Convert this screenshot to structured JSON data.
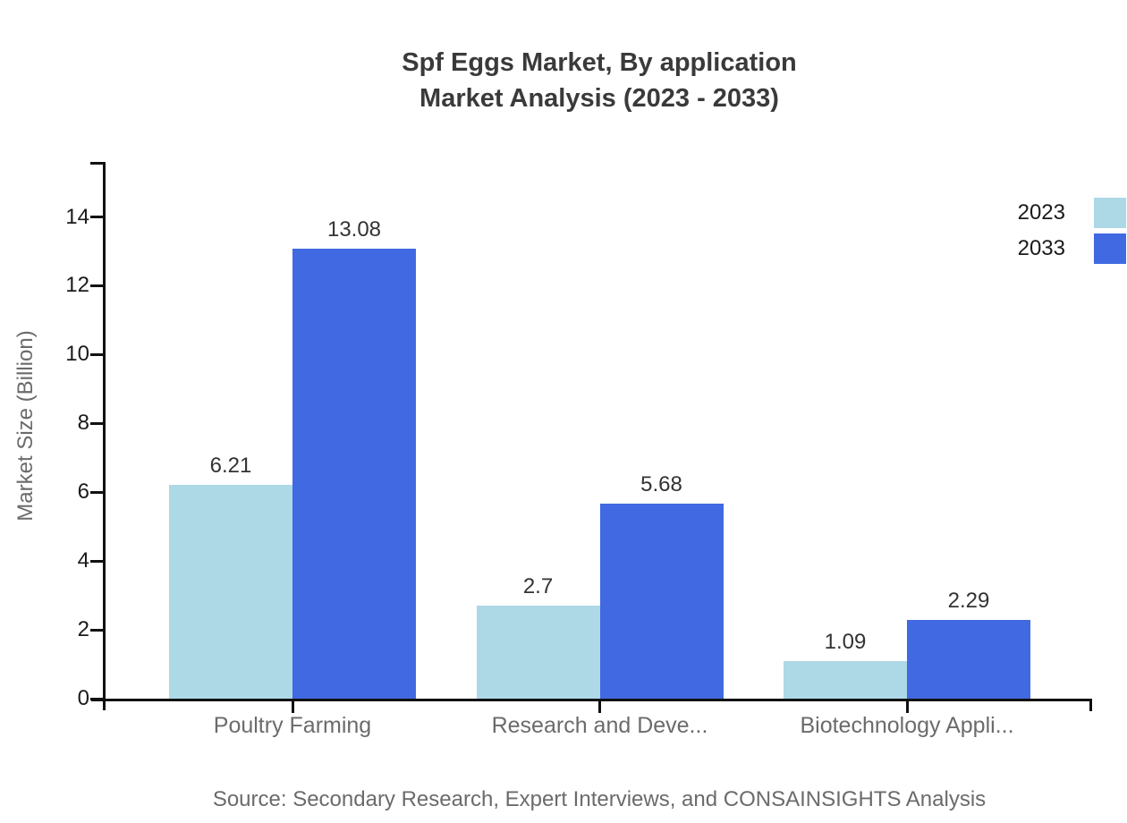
{
  "title": {
    "line1": "Spf Eggs Market, By application",
    "line2": "Market Analysis (2023 - 2033)"
  },
  "source": "Source: Secondary Research, Expert Interviews, and CONSAINSIGHTS Analysis",
  "chart_data": {
    "type": "bar",
    "title": "Spf Eggs Market, By application Market Analysis (2023 - 2033)",
    "categories": [
      "Poultry Farming",
      "Research and Deve...",
      "Biotechnology Appli..."
    ],
    "series": [
      {
        "name": "2023",
        "color": "#ADD8E6",
        "values": [
          6.21,
          2.7,
          1.09
        ]
      },
      {
        "name": "2033",
        "color": "#4169E1",
        "values": [
          13.08,
          5.68,
          2.29
        ]
      }
    ],
    "xlabel": "",
    "ylabel": "Market Size (Billion)",
    "ylim": [
      0,
      15.6
    ],
    "yticks": [
      0,
      2,
      4,
      6,
      8,
      10,
      12,
      14
    ],
    "grid": false,
    "legend_position": "top-right",
    "value_labels": true,
    "colors": {
      "axis": "#111111",
      "tick_label": "#1a1a1a",
      "muted_text": "#6b6b6b",
      "value_label": "#333333",
      "title": "#3a3a3a"
    }
  }
}
